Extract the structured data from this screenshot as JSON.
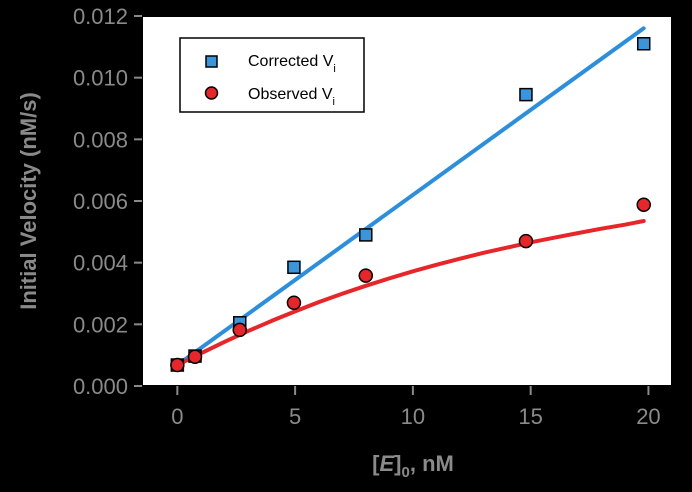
{
  "chart_data": {
    "type": "scatter",
    "ylabel": "Initial Velocity (nM/s)",
    "xlabel": {
      "prefix": "[",
      "italic": "E",
      "bracket_close": "]",
      "subscript": "0",
      "suffix": ", nM"
    },
    "xlim": [
      -1.5,
      21
    ],
    "ylim": [
      0,
      0.012
    ],
    "xticks": [
      0,
      5,
      10,
      15,
      20
    ],
    "yticks": [
      0.0,
      0.002,
      0.004,
      0.006,
      0.008,
      0.01,
      0.012
    ],
    "xtick_labels": [
      "0",
      "5",
      "10",
      "15",
      "20"
    ],
    "ytick_labels": [
      "0.000",
      "0.002",
      "0.004",
      "0.006",
      "0.008",
      "0.010",
      "0.012"
    ],
    "legend_position": "top-left",
    "series": [
      {
        "name": "Corrected V",
        "name_subscript": "i",
        "marker": "square",
        "color": "#3a96dc",
        "x": [
          0.0,
          0.75,
          2.65,
          4.95,
          8.0,
          14.8,
          19.8
        ],
        "y": [
          0.00068,
          0.00097,
          0.00205,
          0.00385,
          0.0049,
          0.00945,
          0.0111
        ],
        "fit": {
          "type": "linear",
          "color": "#2b8fe0",
          "x": [
            0.0,
            19.8
          ],
          "y": [
            0.00068,
            0.0116
          ]
        }
      },
      {
        "name": "Observed V",
        "name_subscript": "i",
        "marker": "circle",
        "color": "#e8262a",
        "x": [
          0.0,
          0.75,
          2.65,
          4.95,
          8.0,
          14.8,
          19.8
        ],
        "y": [
          0.00068,
          0.00095,
          0.00182,
          0.0027,
          0.00358,
          0.0047,
          0.00588
        ],
        "fit": {
          "type": "curve",
          "color": "#e8262a",
          "x": [
            0,
            1,
            2,
            3,
            4,
            5,
            6,
            7,
            8,
            9,
            10,
            11,
            12,
            13,
            14,
            15,
            16,
            17,
            18,
            19,
            19.8
          ],
          "y": [
            0.00068,
            0.00106,
            0.00143,
            0.00178,
            0.00211,
            0.00242,
            0.00272,
            0.00299,
            0.00325,
            0.00349,
            0.00372,
            0.00393,
            0.00413,
            0.00432,
            0.00449,
            0.00466,
            0.00481,
            0.00496,
            0.0051,
            0.00523,
            0.00535
          ]
        }
      }
    ]
  }
}
